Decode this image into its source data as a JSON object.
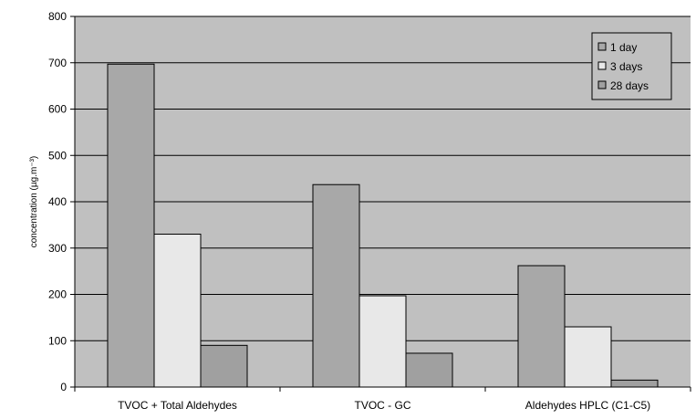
{
  "chart_data": {
    "type": "bar",
    "title": "",
    "xlabel": "",
    "ylabel": "concentration (µg.m⁻³)",
    "ylim": [
      0,
      800
    ],
    "yticks": [
      0,
      100,
      200,
      300,
      400,
      500,
      600,
      700,
      800
    ],
    "grid": true,
    "legend_position": "top-right",
    "categories": [
      "TVOC + Total Aldehydes",
      "TVOC - GC",
      "Aldehydes HPLC (C1-C5)"
    ],
    "series": [
      {
        "name": "1 day",
        "values": [
          697,
          437,
          262
        ],
        "color": "#a8a8a8"
      },
      {
        "name": "3 days",
        "values": [
          330,
          197,
          130
        ],
        "color": "#e8e8e8"
      },
      {
        "name": "28 days",
        "values": [
          90,
          73,
          15
        ],
        "color": "#a0a0a0"
      }
    ],
    "colors": {
      "plot_background": "#c0c0c0",
      "gridline": "#000000"
    }
  }
}
